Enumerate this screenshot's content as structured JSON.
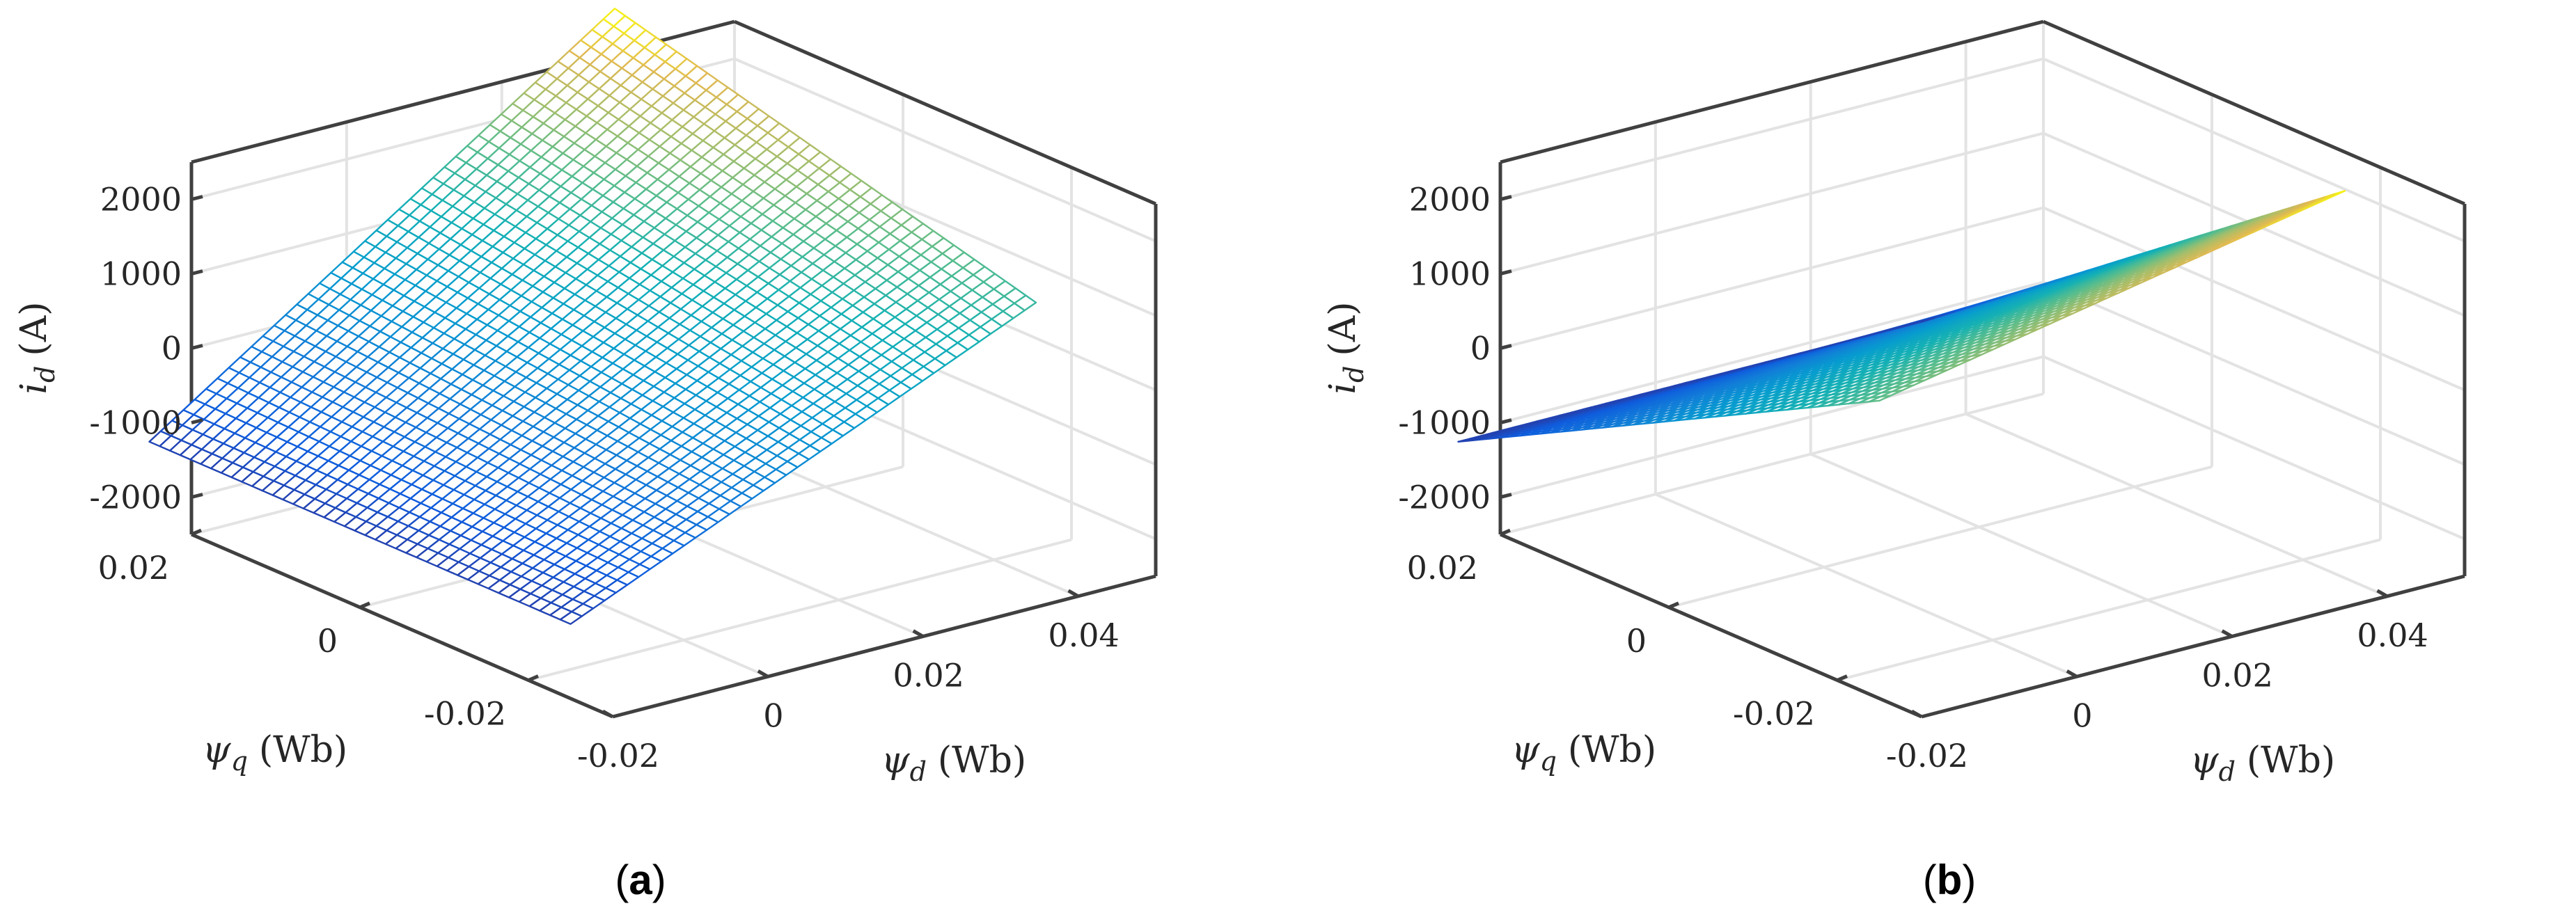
{
  "chart_data": [
    {
      "panel": "(a)",
      "caption_letter": "a",
      "type": "surface-mesh",
      "colormap": "parula",
      "z_label_var": "i",
      "z_label_sub": "d",
      "z_label_unit": "(A)",
      "x_label_var": "ψ",
      "x_label_sub": "d",
      "x_label_unit": "(Wb)",
      "y_label_var": "ψ",
      "y_label_sub": "q",
      "y_label_unit": "(Wb)",
      "x_ticks": [
        "-0.02",
        "0",
        "0.02",
        "0.04"
      ],
      "x_tick_values": [
        -0.02,
        0,
        0.02,
        0.04
      ],
      "y_ticks": [
        "-0.02",
        "0",
        "0.02"
      ],
      "y_tick_values": [
        -0.02,
        0,
        0.02
      ],
      "z_ticks": [
        "-2000",
        "-1000",
        "0",
        "1000",
        "2000"
      ],
      "z_tick_values": [
        -2000,
        -1000,
        0,
        1000,
        2000
      ],
      "xlim": [
        -0.02,
        0.05
      ],
      "ylim": [
        -0.03,
        0.02
      ],
      "zlim": [
        -2500,
        2500
      ],
      "grid": true,
      "surface_extent": {
        "psi_d": [
          -0.02,
          0.04
        ],
        "psi_q": [
          -0.025,
          0.025
        ]
      },
      "corner_values_A": {
        "psi_d_min_psi_q_min": -1500,
        "psi_d_max_psi_q_min": 1200,
        "psi_d_min_psi_q_max": -1500,
        "psi_d_max_psi_q_max": 2700
      },
      "mesh_resolution": 41
    },
    {
      "panel": "(b)",
      "caption_letter": "b",
      "type": "surface-mesh",
      "colormap": "parula",
      "z_label_var": "i",
      "z_label_sub": "d",
      "z_label_unit": "(A)",
      "x_label_var": "ψ",
      "x_label_sub": "d",
      "x_label_unit": "(Wb)",
      "y_label_var": "ψ",
      "y_label_sub": "q",
      "y_label_unit": "(Wb)",
      "x_ticks": [
        "-0.02",
        "0",
        "0.02",
        "0.04"
      ],
      "x_tick_values": [
        -0.02,
        0,
        0.02,
        0.04
      ],
      "y_ticks": [
        "-0.02",
        "0",
        "0.02"
      ],
      "y_tick_values": [
        -0.02,
        0,
        0.02
      ],
      "z_ticks": [
        "-2000",
        "-1000",
        "0",
        "1000",
        "2000"
      ],
      "z_tick_values": [
        -2000,
        -1000,
        0,
        1000,
        2000
      ],
      "xlim": [
        -0.02,
        0.05
      ],
      "ylim": [
        -0.03,
        0.02
      ],
      "zlim": [
        -2500,
        2500
      ],
      "grid": true,
      "surface_extent": {
        "psi_d": [
          -0.02,
          0.04
        ],
        "psi_q": [
          -0.025,
          0.025
        ]
      },
      "corner_values_A": {
        "psi_d_min_psi_q_min": 1500,
        "psi_d_max_psi_q_min": 2700,
        "psi_d_min_psi_q_max": -1500,
        "psi_d_max_psi_q_max": -1500
      },
      "mesh_resolution": 41
    }
  ]
}
